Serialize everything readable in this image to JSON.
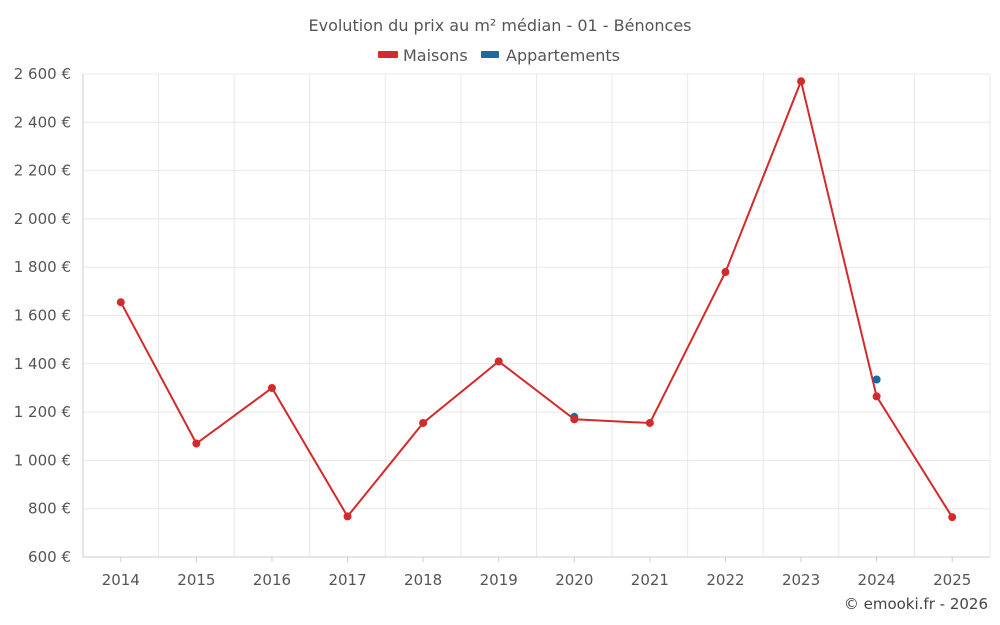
{
  "chart_data": {
    "type": "line",
    "title": "Evolution du prix au m² médian - 01 - Bénonces",
    "categories": [
      "2014",
      "2015",
      "2016",
      "2017",
      "2018",
      "2019",
      "2020",
      "2021",
      "2022",
      "2023",
      "2024",
      "2025"
    ],
    "series": [
      {
        "name": "Maisons",
        "color": "#d42a2a",
        "values": [
          1655,
          1070,
          1300,
          768,
          1155,
          1410,
          1170,
          1155,
          1780,
          2570,
          1265,
          765
        ]
      },
      {
        "name": "Appartements",
        "color": "#1a6aa0",
        "values": [
          null,
          null,
          null,
          null,
          null,
          null,
          1180,
          null,
          null,
          null,
          1335,
          null
        ]
      }
    ],
    "yticks": [
      600,
      800,
      1000,
      1200,
      1400,
      1600,
      1800,
      2000,
      2200,
      2400,
      2600
    ],
    "ytick_labels": [
      "600 €",
      "800 €",
      "1 000 €",
      "1 200 €",
      "1 400 €",
      "1 600 €",
      "1 800 €",
      "2 000 €",
      "2 200 €",
      "2 400 €",
      "2 600 €"
    ],
    "ylim": [
      600,
      2600
    ],
    "xlabel": "",
    "ylabel": "",
    "grid": true,
    "legend_position": "top-center"
  },
  "credit": "© emooki.fr - 2026"
}
